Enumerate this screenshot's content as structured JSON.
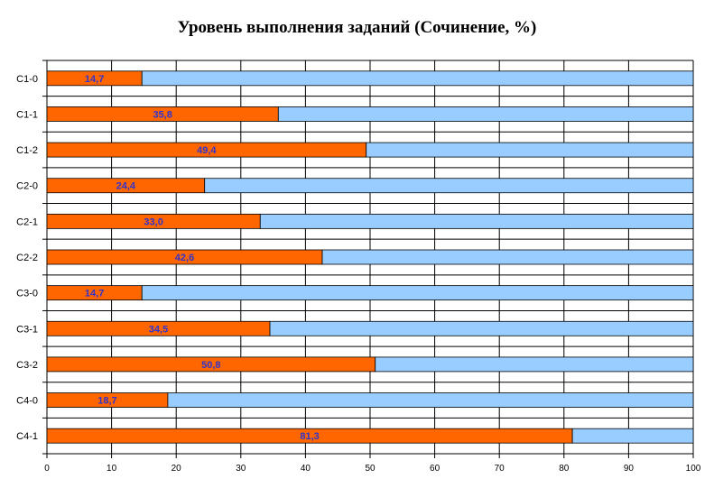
{
  "chart_data": {
    "type": "bar",
    "orientation": "horizontal",
    "stacked": true,
    "percent_stacked": true,
    "title": "Уровень выполнения заданий (Сочинение, %)",
    "xlabel": "",
    "ylabel": "",
    "categories": [
      "С1-0",
      "С1-1",
      "С1-2",
      "С2-0",
      "С2-1",
      "С2-2",
      "С3-0",
      "С3-1",
      "С3-2",
      "С4-0",
      "С4-1"
    ],
    "series": [
      {
        "values": [
          14.7,
          35.8,
          49.4,
          24.4,
          33.0,
          42.6,
          14.7,
          34.5,
          50.8,
          18.7,
          81.3
        ],
        "color": "#ff6600",
        "data_labels": [
          "14,7",
          "35,8",
          "49,4",
          "24,4",
          "33,0",
          "42,6",
          "14,7",
          "34,5",
          "50,8",
          "18,7",
          "81,3"
        ]
      },
      {
        "values": [
          85.3,
          64.2,
          50.6,
          75.6,
          67.0,
          57.4,
          85.3,
          65.5,
          49.2,
          81.3,
          18.7
        ],
        "color": "#99ccff"
      }
    ],
    "xlim": [
      0,
      100
    ],
    "xticks": [
      0,
      10,
      20,
      30,
      40,
      50,
      60,
      70,
      80,
      90,
      100
    ],
    "grid": true,
    "legend": "none",
    "data_label_color": "#3333cc",
    "gridline_color": "#000000",
    "background_color": "#ffffff"
  }
}
